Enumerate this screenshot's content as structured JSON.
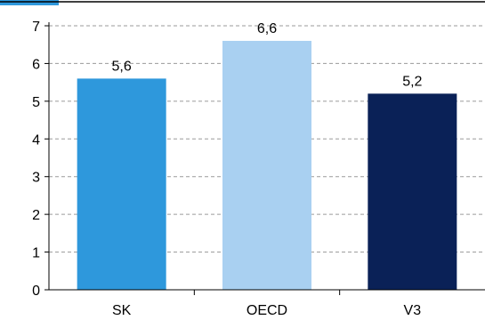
{
  "chart_data": {
    "type": "bar",
    "title": "",
    "xlabel": "",
    "ylabel": "",
    "categories": [
      "SK",
      "OECD",
      "V3"
    ],
    "values": [
      5.6,
      6.6,
      5.2
    ],
    "value_labels": [
      "5,6",
      "6,6",
      "5,2"
    ],
    "colors": [
      "#2e98dc",
      "#a9d0f1",
      "#0a2157"
    ],
    "ylim": [
      0,
      7
    ],
    "yticks": [
      0,
      1,
      2,
      3,
      4,
      5,
      6,
      7
    ],
    "grid": true,
    "grid_style": "dashed",
    "legend": "none"
  },
  "colors": {
    "top_accent": "#2e98dc",
    "axis": "#000000",
    "grid": "#9a9a9a"
  }
}
